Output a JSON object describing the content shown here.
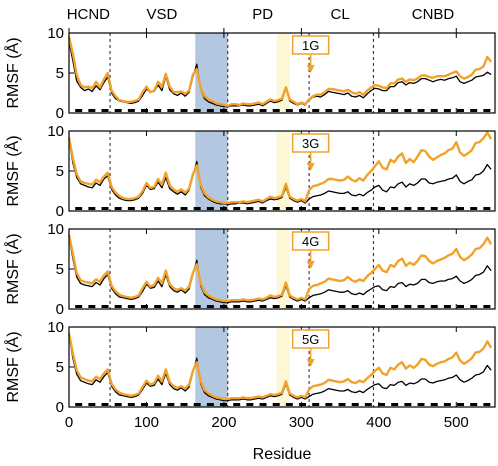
{
  "chart_data": {
    "type": "line",
    "xlabel": "Residue",
    "ylabel": "RMSF (Å)",
    "xlim": [
      0,
      550
    ],
    "ylim": [
      0,
      10
    ],
    "x_ticks": [
      "0",
      "100",
      "200",
      "300",
      "400",
      "500"
    ],
    "y_ticks": [
      "0",
      "5",
      "10"
    ],
    "domains": [
      {
        "label": "HCND",
        "center": 25
      },
      {
        "label": "VSD",
        "center": 120
      },
      {
        "label": "PD",
        "center": 250
      },
      {
        "label": "CL",
        "center": 350
      },
      {
        "label": "CNBD",
        "center": 470
      }
    ],
    "domain_boundaries": [
      53,
      205,
      310,
      393
    ],
    "shaded_regions": [
      {
        "from": 163,
        "to": 205,
        "color": "#b4c7e0"
      },
      {
        "from": 268,
        "to": 285,
        "color": "#fdf7d6"
      }
    ],
    "colors": {
      "reference": "#000000",
      "mutant": "#f2a22b",
      "arrow": "#f2a22b"
    },
    "arrow_residue": 312,
    "x": [
      0,
      5,
      10,
      15,
      20,
      25,
      30,
      35,
      40,
      45,
      50,
      55,
      60,
      65,
      70,
      75,
      80,
      85,
      90,
      95,
      100,
      105,
      110,
      115,
      120,
      125,
      130,
      135,
      140,
      145,
      150,
      155,
      160,
      165,
      170,
      175,
      180,
      185,
      190,
      195,
      200,
      205,
      210,
      215,
      220,
      225,
      230,
      235,
      240,
      245,
      250,
      255,
      260,
      265,
      270,
      275,
      280,
      285,
      290,
      295,
      300,
      305,
      310,
      315,
      320,
      325,
      330,
      335,
      340,
      345,
      350,
      355,
      360,
      365,
      370,
      375,
      380,
      385,
      390,
      395,
      400,
      405,
      410,
      415,
      420,
      425,
      430,
      435,
      440,
      445,
      450,
      455,
      460,
      465,
      470,
      475,
      480,
      485,
      490,
      495,
      500,
      505,
      510,
      515,
      520,
      525,
      530,
      535,
      540,
      545
    ],
    "panels": [
      {
        "label": "1G",
        "series": [
          {
            "values": [
              9.0,
              6.5,
              4.0,
              3.2,
              2.8,
              3.0,
              2.7,
              3.4,
              2.9,
              3.8,
              4.5,
              2.5,
              1.8,
              1.5,
              1.4,
              1.3,
              1.2,
              1.3,
              1.5,
              2.2,
              3.0,
              2.6,
              2.7,
              3.5,
              2.8,
              4.6,
              2.9,
              2.4,
              2.2,
              2.5,
              2.1,
              2.6,
              4.5,
              6.1,
              3.0,
              1.8,
              1.4,
              1.2,
              1.0,
              0.9,
              0.8,
              0.8,
              0.9,
              0.9,
              0.9,
              1.0,
              0.9,
              0.9,
              1.0,
              1.1,
              0.9,
              1.2,
              1.5,
              1.3,
              1.4,
              1.6,
              3.1,
              1.5,
              1.2,
              1.0,
              1.2,
              1.0,
              1.6,
              2.0,
              2.1,
              2.0,
              2.3,
              2.7,
              2.6,
              2.5,
              2.4,
              2.3,
              2.5,
              2.1,
              2.0,
              2.2,
              1.9,
              2.4,
              2.8,
              3.1,
              3.0,
              2.8,
              2.8,
              3.3,
              3.3,
              3.8,
              3.9,
              3.5,
              3.8,
              3.7,
              3.9,
              4.3,
              4.3,
              4.1,
              3.9,
              4.1,
              4.2,
              4.1,
              4.3,
              4.4,
              4.6,
              3.9,
              3.7,
              3.9,
              4.1,
              4.5,
              4.6,
              4.7,
              5.1,
              4.8
            ]
          },
          {
            "values": [
              9.5,
              7.4,
              4.8,
              3.5,
              3.2,
              3.3,
              3.1,
              3.9,
              3.2,
              4.2,
              5.0,
              2.8,
              2.1,
              1.6,
              1.5,
              1.4,
              1.4,
              1.5,
              1.7,
              2.6,
              3.3,
              2.6,
              2.8,
              3.9,
              3.3,
              4.9,
              3.3,
              2.6,
              2.6,
              2.7,
              2.4,
              2.8,
              4.8,
              5.5,
              3.1,
              2.1,
              1.7,
              1.5,
              1.2,
              1.1,
              1.0,
              0.9,
              1.1,
              1.1,
              1.0,
              1.2,
              1.1,
              1.1,
              1.2,
              1.3,
              1.1,
              1.4,
              1.7,
              1.5,
              1.6,
              1.8,
              3.2,
              1.7,
              1.4,
              1.1,
              1.3,
              1.1,
              1.7,
              2.1,
              2.3,
              2.3,
              2.6,
              3.0,
              3.0,
              2.9,
              2.8,
              2.7,
              2.9,
              2.6,
              2.4,
              2.6,
              2.3,
              2.8,
              3.2,
              3.5,
              3.4,
              3.2,
              3.1,
              3.7,
              3.7,
              4.2,
              4.3,
              3.9,
              4.2,
              4.1,
              4.3,
              4.7,
              4.7,
              4.5,
              4.4,
              4.6,
              4.6,
              4.6,
              4.8,
              5.0,
              5.2,
              4.6,
              4.3,
              4.5,
              4.8,
              5.4,
              5.5,
              5.8,
              7.0,
              6.4
            ]
          }
        ]
      },
      {
        "label": "3G",
        "series": [
          {
            "values": [
              9.0,
              6.0,
              4.2,
              3.4,
              3.2,
              3.0,
              2.9,
              3.5,
              3.2,
              4.0,
              4.4,
              2.7,
              2.0,
              1.6,
              1.4,
              1.3,
              1.3,
              1.4,
              1.6,
              2.2,
              3.2,
              2.7,
              2.8,
              3.6,
              2.9,
              4.2,
              2.8,
              2.4,
              2.1,
              2.4,
              2.0,
              2.6,
              4.4,
              6.2,
              3.0,
              1.9,
              1.5,
              1.2,
              1.0,
              0.9,
              0.9,
              0.8,
              0.9,
              0.9,
              1.0,
              1.0,
              0.9,
              1.0,
              1.1,
              1.2,
              1.0,
              1.3,
              1.5,
              1.4,
              1.5,
              1.7,
              3.0,
              1.6,
              1.3,
              1.1,
              1.3,
              1.0,
              1.5,
              1.8,
              1.9,
              2.0,
              2.2,
              2.5,
              2.4,
              2.3,
              2.2,
              2.2,
              2.4,
              2.0,
              1.9,
              2.1,
              1.9,
              2.3,
              2.6,
              3.0,
              3.2,
              2.6,
              2.4,
              3.0,
              2.9,
              3.4,
              3.6,
              3.0,
              3.4,
              3.2,
              3.5,
              4.0,
              4.0,
              3.5,
              3.4,
              3.6,
              3.7,
              3.8,
              4.0,
              4.1,
              4.5,
              3.7,
              3.4,
              3.7,
              3.9,
              4.5,
              4.6,
              5.0,
              5.8,
              5.2
            ]
          },
          {
            "values": [
              9.2,
              6.6,
              4.6,
              3.7,
              3.5,
              3.4,
              3.3,
              3.9,
              3.6,
              4.3,
              4.8,
              3.0,
              2.3,
              1.9,
              1.6,
              1.5,
              1.5,
              1.6,
              1.8,
              2.5,
              3.5,
              2.9,
              3.0,
              4.0,
              3.3,
              4.8,
              3.2,
              2.7,
              2.4,
              2.7,
              2.3,
              2.8,
              4.6,
              5.7,
              3.3,
              2.2,
              1.7,
              1.4,
              1.2,
              1.1,
              1.0,
              1.0,
              1.1,
              1.1,
              1.1,
              1.2,
              1.1,
              1.2,
              1.3,
              1.4,
              1.2,
              1.5,
              1.8,
              1.6,
              1.7,
              1.9,
              3.4,
              1.8,
              1.5,
              1.3,
              1.5,
              1.2,
              2.6,
              3.1,
              3.2,
              3.4,
              3.6,
              4.0,
              4.0,
              3.9,
              3.8,
              3.9,
              4.3,
              3.9,
              3.7,
              4.1,
              3.8,
              4.5,
              5.0,
              5.6,
              6.2,
              5.4,
              5.2,
              6.4,
              6.1,
              6.8,
              7.2,
              6.0,
              6.5,
              6.1,
              6.8,
              7.6,
              7.5,
              6.8,
              6.4,
              6.7,
              7.0,
              7.2,
              7.6,
              7.8,
              8.6,
              7.3,
              6.9,
              7.2,
              7.6,
              8.5,
              8.6,
              9.1,
              9.8,
              9.0
            ]
          }
        ]
      },
      {
        "label": "4G",
        "series": [
          {
            "values": [
              9.0,
              6.3,
              4.0,
              3.2,
              3.0,
              2.9,
              2.8,
              3.3,
              3.0,
              3.8,
              4.3,
              2.6,
              1.9,
              1.5,
              1.4,
              1.3,
              1.2,
              1.3,
              1.5,
              2.2,
              3.1,
              2.6,
              2.7,
              3.5,
              2.8,
              4.3,
              2.8,
              2.3,
              2.1,
              2.4,
              2.0,
              2.5,
              4.3,
              6.1,
              2.9,
              1.8,
              1.4,
              1.2,
              1.0,
              0.9,
              0.8,
              0.8,
              0.9,
              0.9,
              0.9,
              1.0,
              0.9,
              0.9,
              1.0,
              1.1,
              1.0,
              1.2,
              1.4,
              1.3,
              1.4,
              1.6,
              2.9,
              1.5,
              1.2,
              1.0,
              1.2,
              1.0,
              1.4,
              1.7,
              1.8,
              1.9,
              2.1,
              2.4,
              2.3,
              2.2,
              2.1,
              2.1,
              2.3,
              1.9,
              1.8,
              2.0,
              1.8,
              2.2,
              2.5,
              2.8,
              2.9,
              2.4,
              2.3,
              2.8,
              2.7,
              3.2,
              3.3,
              2.8,
              3.1,
              3.0,
              3.2,
              3.7,
              3.7,
              3.3,
              3.2,
              3.4,
              3.5,
              3.5,
              3.7,
              3.8,
              4.1,
              3.5,
              3.2,
              3.4,
              3.7,
              4.2,
              4.3,
              4.6,
              5.4,
              4.8
            ]
          },
          {
            "values": [
              9.3,
              6.9,
              4.5,
              3.6,
              3.4,
              3.3,
              3.2,
              3.7,
              3.4,
              4.2,
              4.7,
              2.9,
              2.2,
              1.8,
              1.6,
              1.5,
              1.4,
              1.5,
              1.7,
              2.6,
              3.4,
              2.8,
              3.0,
              3.9,
              3.2,
              4.8,
              3.1,
              2.6,
              2.4,
              2.6,
              2.3,
              2.8,
              4.5,
              5.6,
              3.2,
              2.1,
              1.7,
              1.4,
              1.2,
              1.1,
              1.0,
              1.0,
              1.1,
              1.1,
              1.1,
              1.2,
              1.1,
              1.1,
              1.2,
              1.3,
              1.2,
              1.4,
              1.7,
              1.5,
              1.6,
              1.8,
              3.3,
              1.7,
              1.4,
              1.2,
              1.4,
              1.2,
              2.5,
              2.9,
              3.0,
              3.2,
              3.4,
              3.8,
              3.7,
              3.6,
              3.5,
              3.6,
              4.0,
              3.6,
              3.4,
              3.7,
              3.5,
              4.1,
              4.5,
              5.0,
              5.5,
              4.8,
              4.6,
              5.5,
              5.3,
              6.0,
              6.3,
              5.4,
              5.8,
              5.5,
              6.0,
              6.7,
              6.6,
              6.0,
              5.7,
              6.0,
              6.2,
              6.4,
              6.7,
              6.9,
              7.5,
              6.5,
              6.1,
              6.4,
              6.8,
              7.5,
              7.6,
              8.1,
              8.9,
              8.1
            ]
          }
        ]
      },
      {
        "label": "5G",
        "series": [
          {
            "values": [
              9.0,
              6.1,
              4.1,
              3.3,
              3.1,
              2.9,
              2.8,
              3.4,
              3.1,
              3.8,
              4.3,
              2.6,
              1.9,
              1.5,
              1.4,
              1.3,
              1.2,
              1.3,
              1.5,
              2.2,
              3.0,
              2.6,
              2.7,
              3.5,
              2.8,
              4.2,
              2.8,
              2.3,
              2.1,
              2.4,
              2.0,
              2.5,
              4.3,
              6.1,
              2.9,
              1.8,
              1.4,
              1.2,
              1.0,
              0.9,
              0.8,
              0.8,
              0.9,
              0.9,
              0.9,
              1.0,
              0.9,
              0.9,
              1.0,
              1.1,
              1.0,
              1.2,
              1.4,
              1.3,
              1.4,
              1.6,
              2.9,
              1.5,
              1.2,
              1.0,
              1.2,
              1.0,
              1.3,
              1.6,
              1.7,
              1.8,
              2.0,
              2.3,
              2.2,
              2.1,
              2.0,
              2.0,
              2.2,
              1.9,
              1.8,
              2.0,
              1.8,
              2.2,
              2.5,
              2.8,
              2.9,
              2.4,
              2.3,
              2.8,
              2.7,
              3.1,
              3.2,
              2.7,
              3.0,
              2.9,
              3.1,
              3.5,
              3.5,
              3.1,
              3.0,
              3.2,
              3.3,
              3.4,
              3.6,
              3.7,
              4.0,
              3.4,
              3.1,
              3.3,
              3.6,
              4.0,
              4.1,
              4.4,
              5.2,
              4.6
            ]
          },
          {
            "values": [
              9.2,
              6.7,
              4.6,
              3.7,
              3.5,
              3.3,
              3.2,
              3.8,
              3.5,
              4.2,
              4.7,
              2.9,
              2.2,
              1.8,
              1.6,
              1.5,
              1.4,
              1.5,
              1.7,
              2.5,
              3.3,
              2.8,
              3.0,
              3.9,
              3.2,
              4.7,
              3.1,
              2.6,
              2.4,
              2.6,
              2.3,
              2.8,
              4.5,
              5.6,
              3.2,
              2.1,
              1.7,
              1.4,
              1.2,
              1.1,
              1.0,
              1.0,
              1.1,
              1.1,
              1.1,
              1.2,
              1.1,
              1.1,
              1.2,
              1.3,
              1.2,
              1.4,
              1.6,
              1.5,
              1.6,
              1.8,
              3.2,
              1.7,
              1.4,
              1.2,
              1.4,
              1.2,
              2.2,
              2.6,
              2.7,
              2.8,
              3.0,
              3.4,
              3.3,
              3.2,
              3.1,
              3.2,
              3.5,
              3.1,
              3.0,
              3.3,
              3.1,
              3.6,
              4.0,
              4.5,
              4.9,
              4.2,
              4.0,
              4.9,
              4.7,
              5.3,
              5.6,
              4.8,
              5.2,
              4.9,
              5.3,
              6.0,
              5.9,
              5.3,
              5.1,
              5.4,
              5.6,
              5.7,
              6.0,
              6.2,
              6.8,
              5.8,
              5.4,
              5.7,
              6.1,
              6.8,
              6.9,
              7.3,
              8.2,
              7.4
            ]
          }
        ]
      }
    ]
  }
}
